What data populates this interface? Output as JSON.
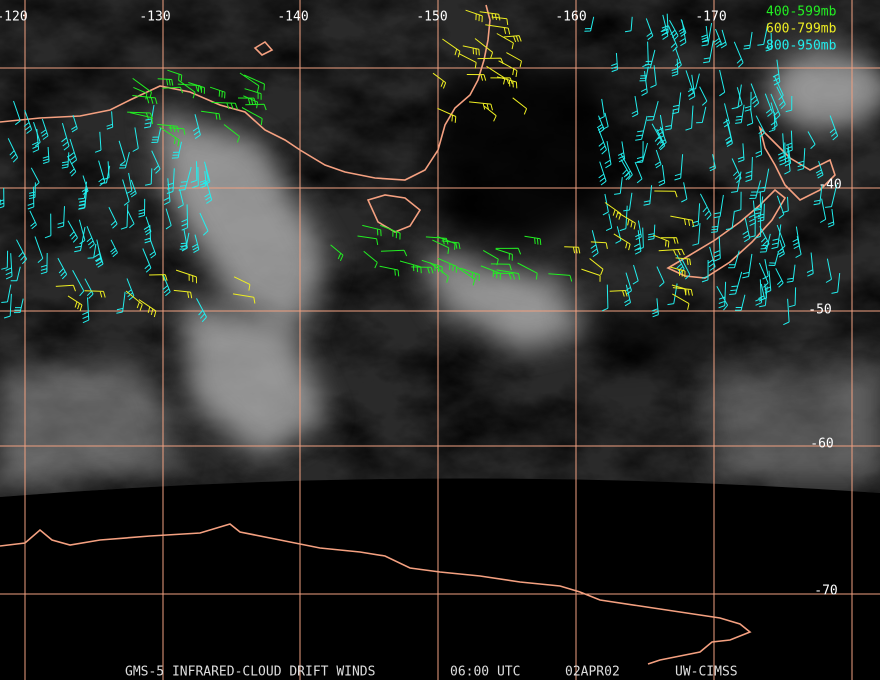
{
  "map": {
    "longitude_labels": [
      "-120",
      "-130",
      "-140",
      "-150",
      "-160",
      "-170"
    ],
    "latitude_labels": [
      "-40",
      "-50",
      "-60",
      "-70"
    ]
  },
  "legend": {
    "entries": [
      {
        "label": "400-599mb",
        "color": "#22ee22"
      },
      {
        "label": "600-799mb",
        "color": "#eeee22"
      },
      {
        "label": "800-950mb",
        "color": "#22eeee"
      }
    ]
  },
  "footer": {
    "title": "GMS-5 INFRARED-CLOUD DRIFT WINDS",
    "time": "06:00 UTC",
    "date": "02APR02",
    "credit": "UW-CIMSS"
  }
}
